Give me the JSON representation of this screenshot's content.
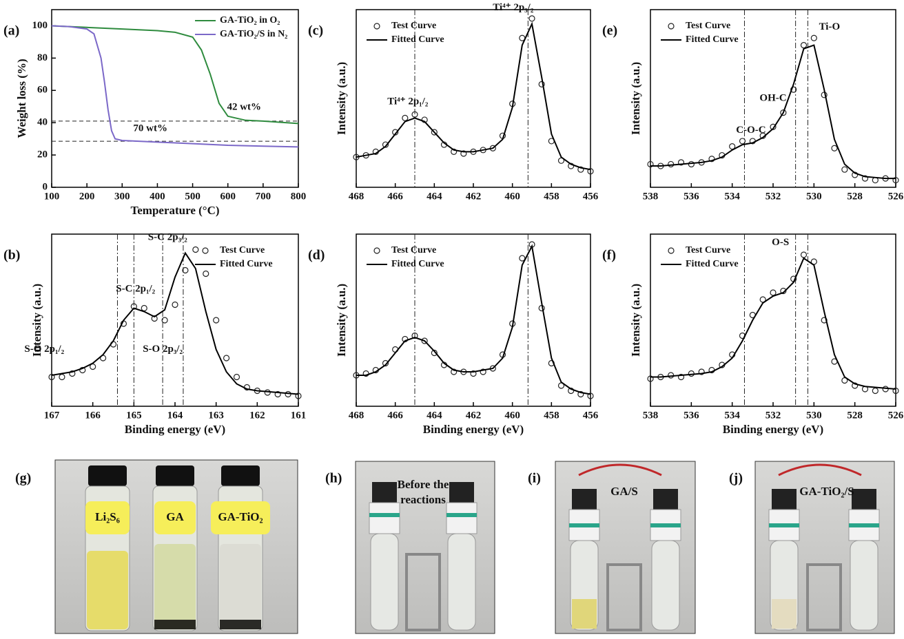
{
  "chart_data": [
    {
      "type": "line",
      "label": "(a)",
      "xlabel": "Temperature (°C)",
      "ylabel": "Weight loss (%)",
      "xlim": [
        100,
        800
      ],
      "xticks": [
        100,
        200,
        300,
        400,
        500,
        600,
        700,
        800
      ],
      "ylim": [
        0,
        110
      ],
      "yticks": [
        0,
        20,
        40,
        60,
        80,
        100
      ],
      "legend": "upper right",
      "hlines": [
        41,
        28.5
      ],
      "annotations": [
        "42 wt%",
        "70 wt%"
      ],
      "series": [
        {
          "name": "GA-TiO₂ in O₂",
          "color": "#2e8b3e",
          "x": [
            100,
            200,
            300,
            400,
            450,
            500,
            525,
            550,
            575,
            600,
            650,
            700,
            800
          ],
          "values": [
            100,
            99,
            98,
            97,
            96,
            93,
            85,
            70,
            52,
            44,
            41.5,
            41,
            39.5
          ]
        },
        {
          "name": "GA-TiO₂/S in N₂",
          "color": "#7b68c8",
          "x": [
            100,
            150,
            200,
            220,
            240,
            250,
            260,
            270,
            280,
            300,
            400,
            500,
            600,
            700,
            800
          ],
          "values": [
            100,
            99.5,
            98,
            95,
            80,
            65,
            48,
            35,
            30,
            29,
            28,
            27,
            26,
            25.5,
            25
          ]
        }
      ]
    },
    {
      "type": "line",
      "label": "(b)",
      "xlabel": "Binding energy (eV)",
      "ylabel": "Intensity (a.u.)",
      "xlim": [
        167,
        161
      ],
      "xticks": [
        167,
        166,
        165,
        164,
        163,
        162,
        161
      ],
      "ylim": [
        0,
        100
      ],
      "legend": "upper right",
      "vlines": [
        165.4,
        165.0,
        164.3,
        163.8
      ],
      "annotations": [
        "S-C 2p₃/₂",
        "S-C 2p₁/₂",
        "S-O 2p₁/₂",
        "S-O 2p₃/₂"
      ],
      "x": [
        167,
        166.75,
        166.5,
        166.25,
        166,
        165.75,
        165.5,
        165.25,
        165,
        164.75,
        164.5,
        164.25,
        164,
        163.75,
        163.5,
        163.25,
        163,
        162.75,
        162.5,
        162.25,
        162,
        161.75,
        161.5,
        161.25,
        161
      ],
      "series": [
        {
          "name": "Test Curve",
          "color": "#222222",
          "marker": "circle",
          "values": [
            17,
            17,
            19,
            21,
            23,
            28,
            36,
            48,
            58,
            57,
            51,
            50,
            59,
            79,
            91,
            77,
            50,
            28,
            17,
            11,
            9,
            8,
            7,
            7,
            6
          ]
        },
        {
          "name": "Fitted Curve",
          "color": "#000000",
          "values": [
            18,
            19,
            20,
            22,
            25,
            30,
            38,
            50,
            57,
            55,
            52,
            56,
            75,
            89,
            80,
            55,
            33,
            20,
            13,
            10,
            9,
            8.5,
            8,
            7.5,
            7
          ]
        }
      ]
    },
    {
      "type": "line",
      "label": "(c)",
      "ylabel": "Intensity (a.u.)",
      "xlim": [
        468,
        456
      ],
      "xticks": [
        468,
        466,
        464,
        462,
        460,
        458,
        456
      ],
      "ylim": [
        0,
        100
      ],
      "legend": "upper left",
      "vlines": [
        465.0,
        459.2
      ],
      "annotations": [
        "Ti⁴⁺ 2p₁/₂",
        "Ti⁴⁺ 2p₃/₂"
      ],
      "x": [
        468,
        467.5,
        467,
        466.5,
        466,
        465.5,
        465,
        464.5,
        464,
        463.5,
        463,
        462.5,
        462,
        461.5,
        461,
        460.5,
        460,
        459.5,
        459,
        458.5,
        458,
        457.5,
        457,
        456.5,
        456
      ],
      "series": [
        {
          "name": "Test Curve",
          "color": "#222222",
          "marker": "circle",
          "values": [
            17,
            18,
            20,
            24,
            31,
            39,
            41,
            38,
            31,
            24,
            20,
            19,
            20,
            21,
            22,
            29,
            47,
            84,
            95,
            58,
            26,
            15,
            12,
            10,
            9
          ]
        },
        {
          "name": "Fitted Curve",
          "color": "#000000",
          "values": [
            17,
            18,
            19,
            23,
            30,
            37,
            39,
            37,
            31,
            25,
            21,
            20,
            20,
            21,
            22,
            27,
            45,
            80,
            92,
            62,
            30,
            17,
            13,
            11,
            10
          ]
        }
      ]
    },
    {
      "type": "line",
      "label": "(d)",
      "xlabel": "Binding energy (eV)",
      "ylabel": "Intensity (a.u.)",
      "xlim": [
        468,
        456
      ],
      "xticks": [
        468,
        466,
        464,
        462,
        460,
        458,
        456
      ],
      "ylim": [
        0,
        100
      ],
      "legend": "upper left",
      "vlines": [
        465.0,
        459.2
      ],
      "x": [
        468,
        467.5,
        467,
        466.5,
        466,
        465.5,
        465,
        464.5,
        464,
        463.5,
        463,
        462.5,
        462,
        461.5,
        461,
        460.5,
        460,
        459.5,
        459,
        458.5,
        458,
        457.5,
        457,
        456.5,
        456
      ],
      "series": [
        {
          "name": "Test Curve",
          "color": "#222222",
          "marker": "circle",
          "values": [
            18,
            19,
            21,
            25,
            33,
            39,
            41,
            38,
            31,
            24,
            20,
            20,
            19,
            20,
            22,
            30,
            48,
            86,
            94,
            57,
            25,
            12,
            9,
            7,
            6
          ]
        },
        {
          "name": "Fitted Curve",
          "color": "#000000",
          "values": [
            18,
            18,
            20,
            24,
            31,
            38,
            40,
            38,
            32,
            25,
            21,
            20,
            20,
            21,
            22,
            28,
            46,
            82,
            93,
            60,
            28,
            14,
            10,
            8,
            7
          ]
        }
      ]
    },
    {
      "type": "line",
      "label": "(e)",
      "ylabel": "Intensity (a.u.)",
      "xlim": [
        538,
        526
      ],
      "xticks": [
        538,
        536,
        534,
        532,
        530,
        528,
        526
      ],
      "ylim": [
        0,
        100
      ],
      "legend": "upper left",
      "vlines": [
        533.4,
        530.9,
        530.3
      ],
      "annotations": [
        "C-O-C",
        "OH-C",
        "Ti-O"
      ],
      "x": [
        538,
        537.5,
        537,
        536.5,
        536,
        535.5,
        535,
        534.5,
        534,
        533.5,
        533,
        532.5,
        532,
        531.5,
        531,
        530.5,
        530,
        529.5,
        529,
        528.5,
        528,
        527.5,
        527,
        526.5,
        526
      ],
      "series": [
        {
          "name": "Test Curve",
          "color": "#222222",
          "marker": "circle",
          "values": [
            13,
            12,
            13,
            14,
            13,
            14,
            16,
            18,
            23,
            26,
            26,
            29,
            34,
            42,
            55,
            80,
            84,
            52,
            22,
            10,
            7,
            5,
            4,
            5,
            4
          ]
        },
        {
          "name": "Fitted Curve",
          "color": "#000000",
          "values": [
            12,
            12,
            12.5,
            13,
            13.5,
            14,
            15,
            17,
            21,
            24,
            25,
            28,
            33,
            42,
            58,
            78,
            80,
            55,
            27,
            13,
            8,
            6,
            5.5,
            5,
            5
          ]
        }
      ]
    },
    {
      "type": "line",
      "label": "(f)",
      "xlabel": "Binding energy (eV)",
      "ylabel": "Intensity (a.u.)",
      "xlim": [
        538,
        526
      ],
      "xticks": [
        538,
        536,
        534,
        532,
        530,
        528,
        526
      ],
      "ylim": [
        0,
        100
      ],
      "legend": "upper left",
      "vlines": [
        533.4,
        530.9,
        530.3
      ],
      "annotations": [
        "O-S"
      ],
      "x": [
        538,
        537.5,
        537,
        536.5,
        536,
        535.5,
        535,
        534.5,
        534,
        533.5,
        533,
        532.5,
        532,
        531.5,
        531,
        530.5,
        530,
        529.5,
        529,
        528.5,
        528,
        527.5,
        527,
        526.5,
        526
      ],
      "series": [
        {
          "name": "Test Curve",
          "color": "#222222",
          "marker": "circle",
          "values": [
            16,
            17,
            18,
            17,
            19,
            20,
            21,
            24,
            30,
            41,
            53,
            62,
            66,
            67,
            74,
            88,
            84,
            50,
            26,
            15,
            12,
            10,
            9,
            10,
            9
          ]
        },
        {
          "name": "Fitted Curve",
          "color": "#000000",
          "values": [
            17,
            17,
            17.5,
            18,
            18.5,
            19,
            20,
            23,
            28,
            38,
            50,
            60,
            64,
            66,
            72,
            86,
            82,
            55,
            30,
            17,
            13,
            11.5,
            11,
            10.5,
            10
          ]
        }
      ]
    }
  ],
  "photos": [
    {
      "label": "(g)",
      "texts": [
        "Li₂S₆",
        "GA",
        "GA-TiO₂"
      ]
    },
    {
      "label": "(h)",
      "texts": [
        "Before the",
        "reactions"
      ]
    },
    {
      "label": "(i)",
      "texts": [
        "GA/S"
      ]
    },
    {
      "label": "(j)",
      "texts": [
        "GA-TiO₂/S"
      ]
    }
  ]
}
